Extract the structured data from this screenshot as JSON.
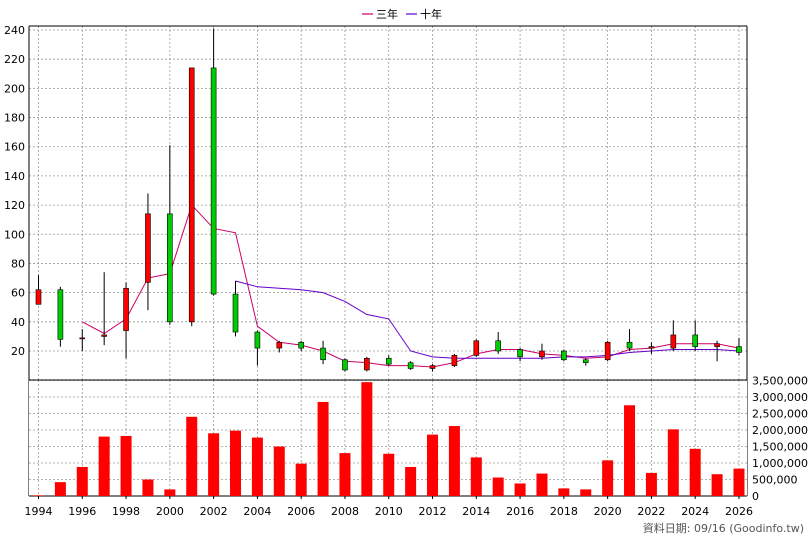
{
  "legend": {
    "items": [
      {
        "label": "三年",
        "color": "#cc0066"
      },
      {
        "label": "十年",
        "color": "#6600cc"
      }
    ]
  },
  "source": "資料日期: 09/16  (Goodinfo.tw)",
  "chart_data": [
    {
      "type": "candlestick",
      "x_labels": [
        "1994",
        "1996",
        "1998",
        "2000",
        "2002",
        "2004",
        "2006",
        "2008",
        "2010",
        "2012",
        "2014",
        "2016",
        "2018",
        "2020",
        "2022",
        "2024",
        "2026"
      ],
      "y_ticks": [
        20,
        40,
        60,
        80,
        100,
        120,
        140,
        160,
        180,
        200,
        220,
        240
      ],
      "ylim": [
        5,
        245
      ],
      "grid": true,
      "up_color": "#ff0000",
      "down_color": "#00cc00",
      "candles": [
        {
          "year": 1994,
          "open": 52,
          "close": 62,
          "high": 72,
          "low": 52
        },
        {
          "year": 1995,
          "open": 62,
          "close": 28,
          "high": 64,
          "low": 23
        },
        {
          "year": 1996,
          "open": 29,
          "close": 29,
          "high": 35,
          "low": 20
        },
        {
          "year": 1997,
          "open": 30,
          "close": 31,
          "high": 74,
          "low": 24
        },
        {
          "year": 1998,
          "open": 34,
          "close": 63,
          "high": 67,
          "low": 15
        },
        {
          "year": 1999,
          "open": 67,
          "close": 114,
          "high": 128,
          "low": 48
        },
        {
          "year": 2000,
          "open": 114,
          "close": 40,
          "high": 161,
          "low": 38
        },
        {
          "year": 2001,
          "open": 40,
          "close": 214,
          "high": 214,
          "low": 37
        },
        {
          "year": 2002,
          "open": 214,
          "close": 59,
          "high": 241,
          "low": 58
        },
        {
          "year": 2003,
          "open": 59,
          "close": 33,
          "high": 68,
          "low": 30
        },
        {
          "year": 2004,
          "open": 33,
          "close": 22,
          "high": 34,
          "low": 10
        },
        {
          "year": 2005,
          "open": 22,
          "close": 26,
          "high": 27,
          "low": 19
        },
        {
          "year": 2006,
          "open": 26,
          "close": 22,
          "high": 27,
          "low": 20
        },
        {
          "year": 2007,
          "open": 22,
          "close": 14,
          "high": 27,
          "low": 11
        },
        {
          "year": 2008,
          "open": 14,
          "close": 7,
          "high": 15,
          "low": 6
        },
        {
          "year": 2009,
          "open": 7,
          "close": 15,
          "high": 16,
          "low": 6
        },
        {
          "year": 2010,
          "open": 15,
          "close": 11,
          "high": 17,
          "low": 10
        },
        {
          "year": 2011,
          "open": 12,
          "close": 8,
          "high": 13,
          "low": 7
        },
        {
          "year": 2012,
          "open": 8,
          "close": 10,
          "high": 11,
          "low": 6
        },
        {
          "year": 2013,
          "open": 10,
          "close": 17,
          "high": 18,
          "low": 9
        },
        {
          "year": 2014,
          "open": 17,
          "close": 27,
          "high": 28,
          "low": 16
        },
        {
          "year": 2015,
          "open": 27,
          "close": 20,
          "high": 33,
          "low": 18
        },
        {
          "year": 2016,
          "open": 21,
          "close": 16,
          "high": 22,
          "low": 13
        },
        {
          "year": 2017,
          "open": 16,
          "close": 20,
          "high": 25,
          "low": 14
        },
        {
          "year": 2018,
          "open": 20,
          "close": 14,
          "high": 21,
          "low": 13
        },
        {
          "year": 2019,
          "open": 14,
          "close": 12,
          "high": 15,
          "low": 10
        },
        {
          "year": 2020,
          "open": 14,
          "close": 26,
          "high": 27,
          "low": 13
        },
        {
          "year": 2021,
          "open": 26,
          "close": 22,
          "high": 35,
          "low": 20
        },
        {
          "year": 2022,
          "open": 22,
          "close": 23,
          "high": 26,
          "low": 18
        },
        {
          "year": 2023,
          "open": 22,
          "close": 31,
          "high": 41,
          "low": 20
        },
        {
          "year": 2024,
          "open": 31,
          "close": 23,
          "high": 41,
          "low": 20
        },
        {
          "year": 2025,
          "open": 23,
          "close": 25,
          "high": 27,
          "low": 13
        },
        {
          "year": 2026,
          "open": 23,
          "close": 19,
          "high": 29,
          "low": 17
        }
      ],
      "ma_series": [
        {
          "name": "三年",
          "color": "#cc0066",
          "x": [
            1996,
            1997,
            1998,
            1999,
            2000,
            2001,
            2002,
            2003,
            2004,
            2005,
            2006,
            2007,
            2008,
            2009,
            2010,
            2011,
            2012,
            2013,
            2014,
            2015,
            2016,
            2017,
            2018,
            2019,
            2020,
            2021,
            2022,
            2023,
            2024,
            2025,
            2026
          ],
          "y": [
            40,
            32,
            42,
            70,
            73,
            120,
            104,
            101,
            37,
            26,
            24,
            20,
            13,
            12,
            10,
            10,
            9,
            12,
            18,
            21,
            21,
            18,
            17,
            15,
            16,
            21,
            22,
            25,
            25,
            25,
            22
          ]
        },
        {
          "name": "十年",
          "color": "#6600cc",
          "x": [
            2003,
            2004,
            2005,
            2006,
            2007,
            2008,
            2009,
            2010,
            2011,
            2012,
            2013,
            2014,
            2015,
            2016,
            2017,
            2018,
            2019,
            2020,
            2021,
            2022,
            2023,
            2024,
            2025,
            2026
          ],
          "y": [
            68,
            64,
            63,
            62,
            60,
            54,
            45,
            42,
            20,
            16,
            15,
            15,
            15,
            15,
            15,
            16,
            16,
            17,
            19,
            20,
            21,
            21,
            21,
            20
          ]
        }
      ]
    },
    {
      "type": "bar",
      "ylim": [
        0,
        3500000
      ],
      "y_ticks": [
        0,
        500000,
        1000000,
        1500000,
        2000000,
        2500000,
        3000000,
        3500000
      ],
      "y_tick_labels": [
        "0",
        "500,000",
        "1,000,000",
        "1,500,000",
        "2,000,000",
        "2,500,000",
        "3,000,000",
        "3,500,000"
      ],
      "color": "#ff0000",
      "years": [
        1994,
        1995,
        1996,
        1997,
        1998,
        1999,
        2000,
        2001,
        2002,
        2003,
        2004,
        2005,
        2006,
        2007,
        2008,
        2009,
        2010,
        2011,
        2012,
        2013,
        2014,
        2015,
        2016,
        2017,
        2018,
        2019,
        2020,
        2021,
        2022,
        2023,
        2024,
        2025,
        2026
      ],
      "values": [
        20000,
        420000,
        880000,
        1800000,
        1820000,
        500000,
        200000,
        2400000,
        1900000,
        1980000,
        1770000,
        1500000,
        980000,
        2850000,
        1300000,
        3450000,
        1280000,
        880000,
        1860000,
        2120000,
        1170000,
        560000,
        380000,
        680000,
        230000,
        200000,
        1080000,
        2750000,
        700000,
        2020000,
        1430000,
        660000,
        830000
      ]
    }
  ]
}
